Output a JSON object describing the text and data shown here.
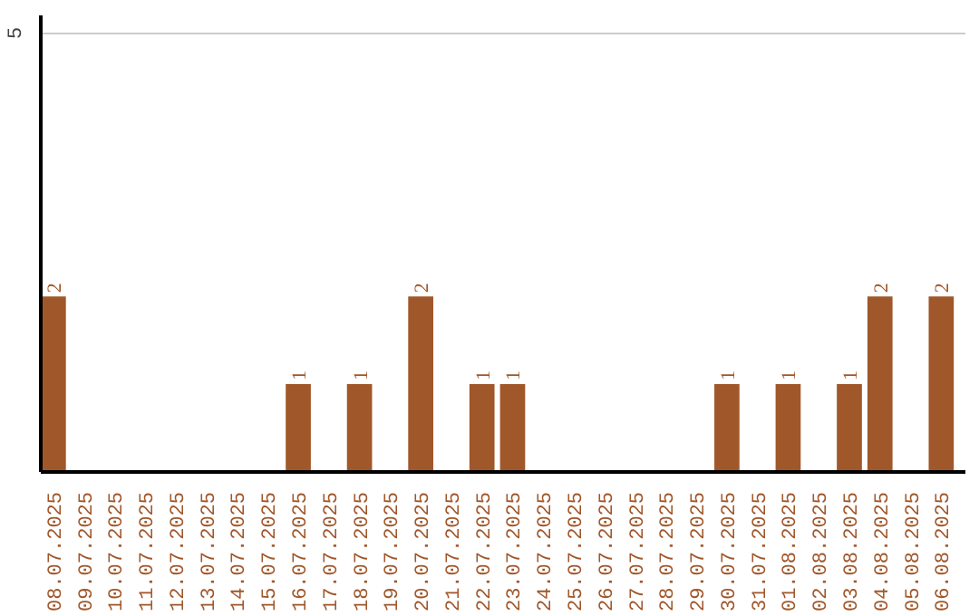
{
  "chart_data": {
    "type": "bar",
    "categories": [
      "08.07.2025",
      "09.07.2025",
      "10.07.2025",
      "11.07.2025",
      "12.07.2025",
      "13.07.2025",
      "14.07.2025",
      "15.07.2025",
      "16.07.2025",
      "17.07.2025",
      "18.07.2025",
      "19.07.2025",
      "20.07.2025",
      "21.07.2025",
      "22.07.2025",
      "23.07.2025",
      "24.07.2025",
      "25.07.2025",
      "26.07.2025",
      "27.07.2025",
      "28.07.2025",
      "29.07.2025",
      "30.07.2025",
      "31.07.2025",
      "01.08.2025",
      "02.08.2025",
      "03.08.2025",
      "04.08.2025",
      "05.08.2025",
      "06.08.2025"
    ],
    "values": [
      2,
      0,
      0,
      0,
      0,
      0,
      0,
      0,
      1,
      0,
      1,
      0,
      2,
      0,
      1,
      1,
      0,
      0,
      0,
      0,
      0,
      0,
      1,
      0,
      1,
      0,
      1,
      2,
      0,
      2
    ],
    "value_labels": [
      "2",
      null,
      null,
      null,
      null,
      null,
      null,
      null,
      "1",
      null,
      "1",
      null,
      "2",
      null,
      "1",
      "1",
      null,
      null,
      null,
      null,
      null,
      null,
      "1",
      null,
      "1",
      null,
      "1",
      "2",
      null,
      "2"
    ],
    "color": "#a0572a",
    "ylim": [
      0,
      5.2
    ],
    "yticks": [
      5
    ],
    "grid": "y"
  }
}
